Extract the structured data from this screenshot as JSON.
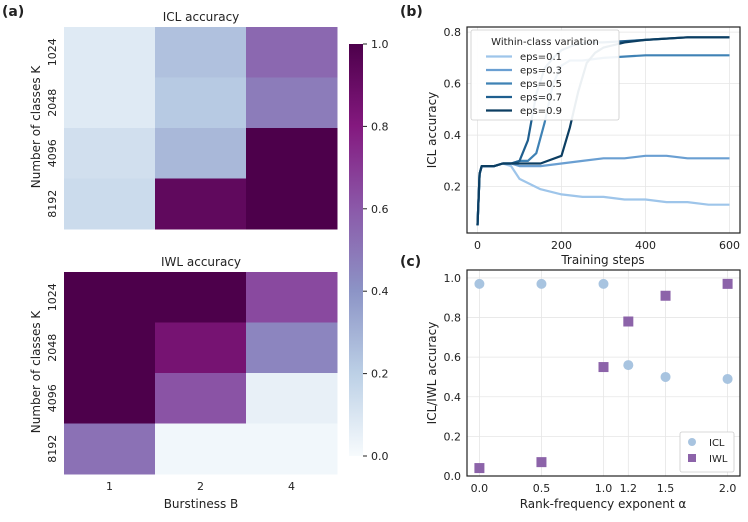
{
  "panels": {
    "a": {
      "label": "(a)",
      "colorbar": {
        "ticks": [
          "1.0",
          "0.8",
          "0.6",
          "0.4",
          "0.2",
          "0.0"
        ],
        "range": [
          0,
          1
        ],
        "colors": [
          "#f7fbfd",
          "#bcd0e6",
          "#8c94c6",
          "#8b59a9",
          "#84197f",
          "#4d004b"
        ]
      }
    },
    "b": {
      "label": "(b)"
    },
    "c": {
      "label": "(c)"
    }
  },
  "chart_data": [
    {
      "id": "icl-heatmap",
      "type": "heatmap",
      "title": "ICL accuracy",
      "ylabel": "Number of classes K",
      "xlabel": "",
      "rows": [
        "1024",
        "2048",
        "4096",
        "8192"
      ],
      "cols": [
        "1",
        "2",
        "4"
      ],
      "values": [
        [
          0.08,
          0.25,
          0.55
        ],
        [
          0.08,
          0.22,
          0.48
        ],
        [
          0.13,
          0.28,
          1.0
        ],
        [
          0.15,
          0.93,
          1.0
        ]
      ]
    },
    {
      "id": "iwl-heatmap",
      "type": "heatmap",
      "title": "IWL accuracy",
      "ylabel": "Number of classes K",
      "xlabel": "Burstiness B",
      "rows": [
        "1024",
        "2048",
        "4096",
        "8192"
      ],
      "cols": [
        "1",
        "2",
        "4"
      ],
      "values": [
        [
          1.0,
          1.0,
          0.65
        ],
        [
          1.0,
          0.85,
          0.45
        ],
        [
          1.0,
          0.62,
          0.05
        ],
        [
          0.52,
          0.02,
          0.02
        ]
      ]
    },
    {
      "id": "icl-training",
      "type": "line",
      "title": "",
      "xlabel": "Training steps",
      "ylabel": "ICL accuracy",
      "xlim": [
        -25,
        625
      ],
      "ylim": [
        0.02,
        0.82
      ],
      "xticks": [
        0,
        200,
        400,
        600
      ],
      "yticks": [
        0.2,
        0.4,
        0.6,
        0.8
      ],
      "legend_title": "Within-class variation",
      "series": [
        {
          "name": "eps=0.1",
          "color": "#9ec5ea",
          "x": [
            0,
            5,
            10,
            20,
            40,
            60,
            80,
            100,
            150,
            200,
            250,
            300,
            350,
            400,
            450,
            500,
            550,
            600
          ],
          "y": [
            0.05,
            0.25,
            0.28,
            0.28,
            0.28,
            0.29,
            0.28,
            0.23,
            0.19,
            0.17,
            0.16,
            0.16,
            0.15,
            0.15,
            0.14,
            0.14,
            0.13,
            0.13
          ]
        },
        {
          "name": "eps=0.3",
          "color": "#6a9fd2",
          "x": [
            0,
            5,
            10,
            20,
            40,
            60,
            80,
            100,
            150,
            200,
            250,
            300,
            350,
            400,
            450,
            500,
            550,
            600
          ],
          "y": [
            0.05,
            0.25,
            0.28,
            0.28,
            0.28,
            0.29,
            0.29,
            0.28,
            0.28,
            0.29,
            0.3,
            0.31,
            0.31,
            0.32,
            0.32,
            0.31,
            0.31,
            0.31
          ]
        },
        {
          "name": "eps=0.5",
          "color": "#3f82b5",
          "x": [
            0,
            5,
            10,
            20,
            40,
            60,
            80,
            100,
            120,
            140,
            160,
            180,
            200,
            220,
            250,
            300,
            400,
            500,
            600
          ],
          "y": [
            0.05,
            0.25,
            0.28,
            0.28,
            0.28,
            0.29,
            0.29,
            0.3,
            0.3,
            0.33,
            0.45,
            0.6,
            0.67,
            0.69,
            0.69,
            0.7,
            0.71,
            0.71,
            0.71
          ]
        },
        {
          "name": "eps=0.7",
          "color": "#1f5f8f",
          "x": [
            0,
            5,
            10,
            20,
            40,
            60,
            80,
            100,
            120,
            140,
            160,
            180,
            200,
            230,
            260,
            300,
            400,
            500,
            600
          ],
          "y": [
            0.05,
            0.25,
            0.28,
            0.28,
            0.28,
            0.29,
            0.29,
            0.3,
            0.38,
            0.56,
            0.66,
            0.7,
            0.73,
            0.75,
            0.76,
            0.76,
            0.77,
            0.78,
            0.78
          ]
        },
        {
          "name": "eps=0.9",
          "color": "#0c3e62",
          "x": [
            0,
            5,
            10,
            20,
            40,
            60,
            80,
            100,
            150,
            200,
            220,
            240,
            260,
            280,
            300,
            350,
            400,
            500,
            600
          ],
          "y": [
            0.05,
            0.25,
            0.28,
            0.28,
            0.28,
            0.29,
            0.29,
            0.29,
            0.29,
            0.32,
            0.43,
            0.57,
            0.68,
            0.72,
            0.74,
            0.76,
            0.77,
            0.78,
            0.78
          ]
        }
      ]
    },
    {
      "id": "rank-frequency",
      "type": "scatter",
      "title": "",
      "xlabel": "Rank-frequency exponent α",
      "ylabel": "ICL/IWL accuracy",
      "xlim": [
        -0.1,
        2.1
      ],
      "ylim": [
        0,
        1.04
      ],
      "xticks": [
        "0.0",
        "0.5",
        "1.0",
        "1.2",
        "1.5",
        "2.0"
      ],
      "yticks": [
        "0.0",
        "0.2",
        "0.4",
        "0.6",
        "0.8",
        "1.0"
      ],
      "legend_position": "bottom-right",
      "series": [
        {
          "name": "ICL",
          "marker": "circle",
          "color": "#a8c4e0",
          "x": [
            0.0,
            0.5,
            1.0,
            1.2,
            1.5,
            2.0
          ],
          "y": [
            0.97,
            0.97,
            0.97,
            0.56,
            0.5,
            0.49
          ]
        },
        {
          "name": "IWL",
          "marker": "square",
          "color": "#8c63a9",
          "x": [
            0.0,
            0.5,
            1.0,
            1.2,
            1.5,
            2.0
          ],
          "y": [
            0.04,
            0.07,
            0.55,
            0.78,
            0.91,
            0.97
          ]
        }
      ]
    }
  ]
}
